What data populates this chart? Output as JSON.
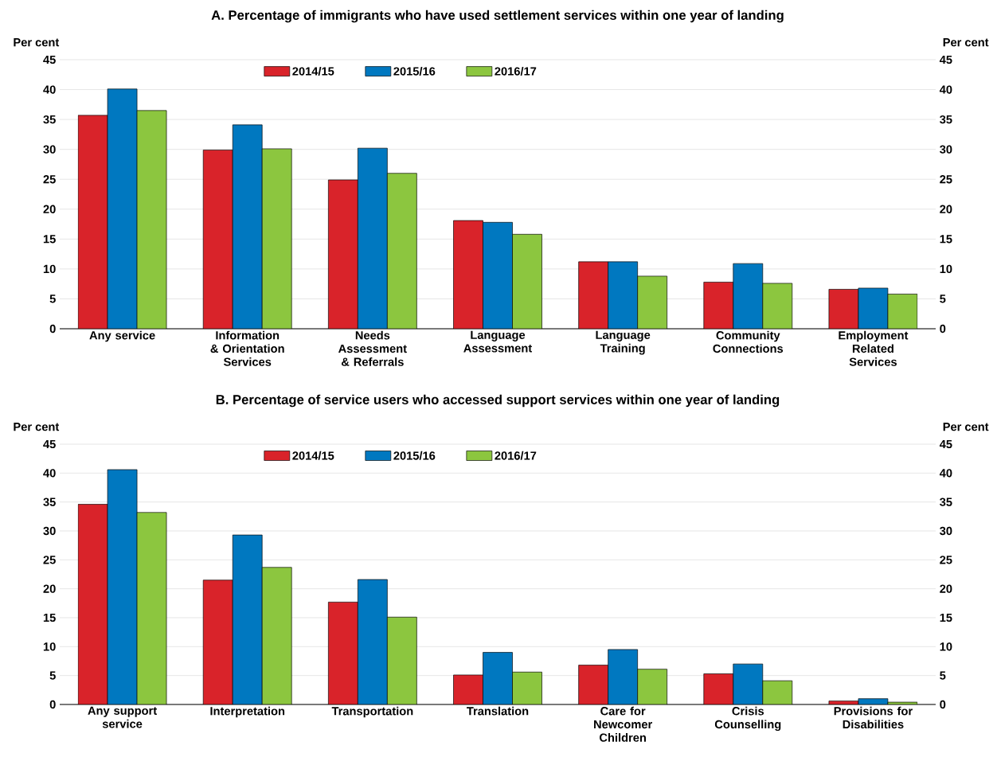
{
  "chart_data": [
    {
      "type": "bar",
      "title": "A. Percentage of immigrants who have used settlement services within one year of landing",
      "ylabel": "Per cent",
      "y2label": "Per cent",
      "categories": [
        "Any service",
        "Information & Orientation Services",
        "Needs Assessment & Referrals",
        "Language Assessment",
        "Language Training",
        "Community Connections",
        "Employment Related Services"
      ],
      "series": [
        {
          "name": "2014/15",
          "color": "#d9232a",
          "values": [
            35.7,
            29.9,
            24.9,
            18.1,
            11.2,
            7.8,
            6.6
          ]
        },
        {
          "name": "2015/16",
          "color": "#0078c0",
          "values": [
            40.1,
            34.1,
            30.2,
            17.8,
            11.2,
            10.9,
            6.8
          ]
        },
        {
          "name": "2016/17",
          "color": "#8cc63f",
          "values": [
            36.5,
            30.1,
            26.0,
            15.8,
            8.8,
            7.6,
            5.8
          ]
        }
      ],
      "ylim": [
        0,
        45
      ],
      "yticks": [
        0,
        5,
        10,
        15,
        20,
        25,
        30,
        35,
        40,
        45
      ],
      "y2lim": [
        0,
        45
      ],
      "y2ticks": [
        0,
        5,
        10,
        15,
        20,
        25,
        30,
        35,
        40,
        45
      ],
      "grid": "y",
      "legend": "top"
    },
    {
      "type": "bar",
      "title": "B. Percentage of service users who accessed support services within one year of landing",
      "ylabel": "Per cent",
      "y2label": "Per cent",
      "categories": [
        "Any support service",
        "Interpretation",
        "Transportation",
        "Translation",
        "Care for Newcomer Children",
        "Crisis Counselling",
        "Provisions for Disabilities"
      ],
      "series": [
        {
          "name": "2014/15",
          "color": "#d9232a",
          "values": [
            34.6,
            21.5,
            17.7,
            5.1,
            6.8,
            5.3,
            0.6
          ]
        },
        {
          "name": "2015/16",
          "color": "#0078c0",
          "values": [
            40.6,
            29.3,
            21.6,
            9.0,
            9.5,
            7.0,
            1.0
          ]
        },
        {
          "name": "2016/17",
          "color": "#8cc63f",
          "values": [
            33.2,
            23.7,
            15.1,
            5.6,
            6.1,
            4.1,
            0.4
          ]
        }
      ],
      "ylim": [
        0,
        45
      ],
      "yticks": [
        0,
        5,
        10,
        15,
        20,
        25,
        30,
        35,
        40,
        45
      ],
      "y2lim": [
        0,
        45
      ],
      "y2ticks": [
        0,
        5,
        10,
        15,
        20,
        25,
        30,
        35,
        40,
        45
      ],
      "grid": "y",
      "legend": "top"
    }
  ]
}
